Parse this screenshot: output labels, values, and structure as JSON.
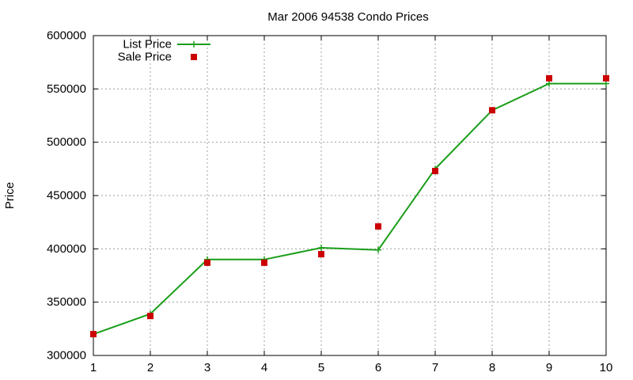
{
  "chart_data": {
    "type": "line",
    "title": "Mar 2006 94538 Condo Prices",
    "xlabel": "",
    "ylabel": "Price",
    "xlim": [
      1,
      10
    ],
    "ylim": [
      300000,
      600000
    ],
    "x_ticks": [
      "1",
      "2",
      "3",
      "4",
      "5",
      "6",
      "7",
      "8",
      "9",
      "10"
    ],
    "y_ticks": [
      "300000",
      "350000",
      "400000",
      "450000",
      "500000",
      "550000",
      "600000"
    ],
    "grid": true,
    "legend_position": "top-left",
    "x": [
      1,
      2,
      3,
      4,
      5,
      6,
      7,
      8,
      9,
      10
    ],
    "series": [
      {
        "name": "List Price",
        "style": "line-with-plus-markers",
        "color": "#1a9e1a",
        "values": [
          320000,
          339000,
          390000,
          390000,
          401000,
          399000,
          475000,
          530000,
          555000,
          555000
        ]
      },
      {
        "name": "Sale Price",
        "style": "square-markers",
        "color": "#cc0000",
        "values": [
          320000,
          337000,
          387000,
          387000,
          395000,
          421000,
          473000,
          530000,
          560000,
          560000
        ]
      }
    ]
  }
}
